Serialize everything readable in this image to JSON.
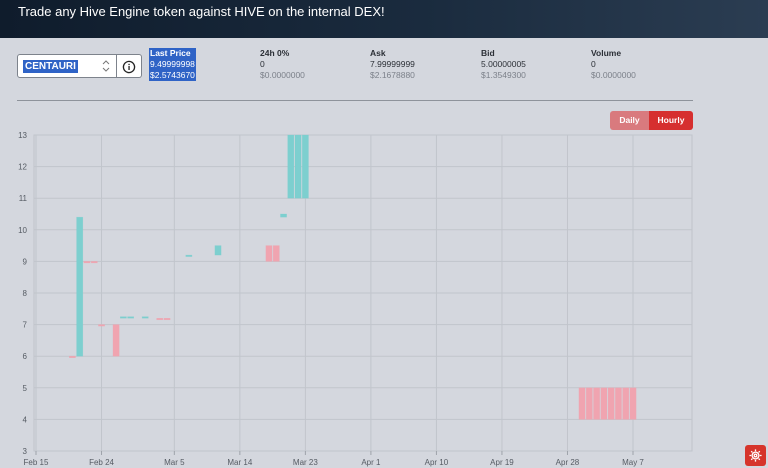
{
  "header": {
    "title": "Trade any Hive Engine token against HIVE on the internal DEX!"
  },
  "token_selector": {
    "value": "CENTAURI",
    "icons": [
      "updown-arrows-icon",
      "info-icon"
    ]
  },
  "stats": [
    {
      "label": "Last Price",
      "value": "9.49999998",
      "usd": "$2.5743670"
    },
    {
      "label": "24h 0%",
      "value": "0",
      "usd": "$0.0000000"
    },
    {
      "label": "Ask",
      "value": "7.99999999",
      "usd": "$2.1678880"
    },
    {
      "label": "Bid",
      "value": "5.00000005",
      "usd": "$1.3549300"
    },
    {
      "label": "Volume",
      "value": "0",
      "usd": "$0.0000000"
    }
  ],
  "interval_toggle": {
    "daily": "Daily",
    "hourly": "Hourly",
    "selected": "Hourly"
  },
  "settings_button": {
    "icon": "gear-icon"
  },
  "colors": {
    "up": "#7dcfcf",
    "down": "#f0a4b0",
    "accent": "#d62f2f"
  },
  "chart_data": {
    "type": "candlestick",
    "x_tick_labels": [
      "Feb 15",
      "Feb 24",
      "Mar 5",
      "Mar 14",
      "Mar 23",
      "Apr 1",
      "Apr 10",
      "Apr 19",
      "Apr 28",
      "May 7"
    ],
    "y_tick_labels": [
      "3",
      "4",
      "5",
      "6",
      "7",
      "8",
      "9",
      "10",
      "11",
      "12",
      "13"
    ],
    "ylim": [
      3,
      13
    ],
    "grid": true,
    "candles": [
      {
        "date": "Feb 20",
        "open": 6.0,
        "close": 6.0,
        "dir": "down"
      },
      {
        "date": "Feb 21",
        "open": 6.0,
        "close": 10.4,
        "dir": "up"
      },
      {
        "date": "Feb 22",
        "open": 9.0,
        "close": 9.0,
        "dir": "down"
      },
      {
        "date": "Feb 23",
        "open": 9.0,
        "close": 9.0,
        "dir": "down"
      },
      {
        "date": "Feb 24",
        "open": 7.0,
        "close": 7.0,
        "dir": "down"
      },
      {
        "date": "Feb 26",
        "open": 7.0,
        "close": 6.0,
        "dir": "down"
      },
      {
        "date": "Feb 27",
        "open": 7.25,
        "close": 7.25,
        "dir": "up"
      },
      {
        "date": "Feb 28",
        "open": 7.25,
        "close": 7.25,
        "dir": "up"
      },
      {
        "date": "Mar 1",
        "open": 7.25,
        "close": 7.25,
        "dir": "up"
      },
      {
        "date": "Mar 3",
        "open": 7.2,
        "close": 7.2,
        "dir": "down"
      },
      {
        "date": "Mar 4",
        "open": 7.2,
        "close": 7.2,
        "dir": "down"
      },
      {
        "date": "Mar 7",
        "open": 9.2,
        "close": 9.2,
        "dir": "up"
      },
      {
        "date": "Mar 11",
        "open": 9.2,
        "close": 9.5,
        "dir": "up"
      },
      {
        "date": "Mar 18",
        "open": 9.5,
        "close": 9.0,
        "dir": "down"
      },
      {
        "date": "Mar 19",
        "open": 9.5,
        "close": 9.0,
        "dir": "down"
      },
      {
        "date": "Mar 20",
        "open": 10.4,
        "close": 10.5,
        "dir": "up"
      },
      {
        "date": "Mar 21",
        "open": 11.0,
        "close": 13.0,
        "dir": "up"
      },
      {
        "date": "Mar 22",
        "open": 11.0,
        "close": 13.0,
        "dir": "up"
      },
      {
        "date": "Mar 23",
        "open": 11.0,
        "close": 13.0,
        "dir": "up"
      },
      {
        "date": "Apr 30",
        "open": 5.0,
        "close": 4.0,
        "dir": "down"
      },
      {
        "date": "May 1",
        "open": 5.0,
        "close": 4.0,
        "dir": "down"
      },
      {
        "date": "May 2",
        "open": 5.0,
        "close": 4.0,
        "dir": "down"
      },
      {
        "date": "May 3",
        "open": 5.0,
        "close": 4.0,
        "dir": "down"
      },
      {
        "date": "May 4",
        "open": 5.0,
        "close": 4.0,
        "dir": "down"
      },
      {
        "date": "May 5",
        "open": 5.0,
        "close": 4.0,
        "dir": "down"
      },
      {
        "date": "May 6",
        "open": 5.0,
        "close": 4.0,
        "dir": "down"
      },
      {
        "date": "May 7",
        "open": 5.0,
        "close": 4.0,
        "dir": "down"
      }
    ]
  }
}
